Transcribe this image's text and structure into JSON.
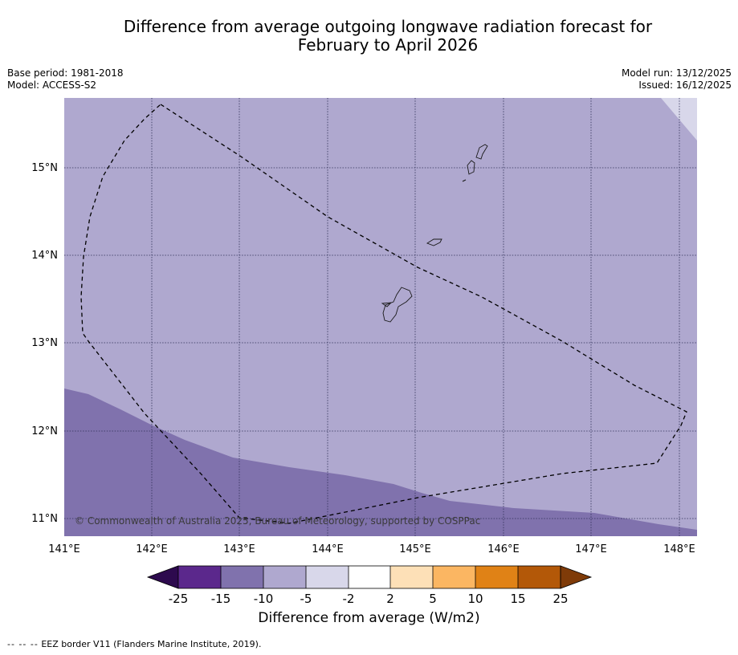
{
  "title": {
    "line1": "Difference from average outgoing longwave radiation forecast for",
    "line2": "February to April 2026"
  },
  "meta": {
    "base_period": "Base period: 1981-2018",
    "model": "Model: ACCESS-S2",
    "model_run": "Model run: 13/12/2025",
    "issued": "Issued: 16/12/2025"
  },
  "map": {
    "lat_labels": [
      "15°N",
      "14°N",
      "13°N",
      "12°N",
      "11°N"
    ],
    "lon_labels": [
      "141°E",
      "142°E",
      "143°E",
      "144°E",
      "145°E",
      "146°E",
      "147°E",
      "148°E"
    ],
    "copyright": "© Commonwealth of Australia 2025, Bureau of Meteorology, supported by COSPPac",
    "colors": {
      "band_m10_m5": "#afa8cf",
      "band_m15_m10": "#8072ad",
      "band_m5_m2": "#d8d7ea"
    }
  },
  "colorbar": {
    "ticks": [
      "-25",
      "-15",
      "-10",
      "-5",
      "-2",
      "2",
      "5",
      "10",
      "15",
      "25"
    ],
    "label": "Difference from average (W/m2)",
    "colors": {
      "lt_m25": "#2d0a4e",
      "m25_m15": "#5b288c",
      "m15_m10": "#8072ad",
      "m10_m5": "#afa8cf",
      "m5_m2": "#d8d7ea",
      "m2_2": "#ffffff",
      "2_5": "#fde0b7",
      "5_10": "#fbb662",
      "10_15": "#e08216",
      "15_25": "#b35808",
      "gt_25": "#7f3b08"
    }
  },
  "footer": {
    "legend_symbol": "--  --  --",
    "legend_text": "EEZ border V11 (Flanders Marine Institute, 2019)."
  }
}
